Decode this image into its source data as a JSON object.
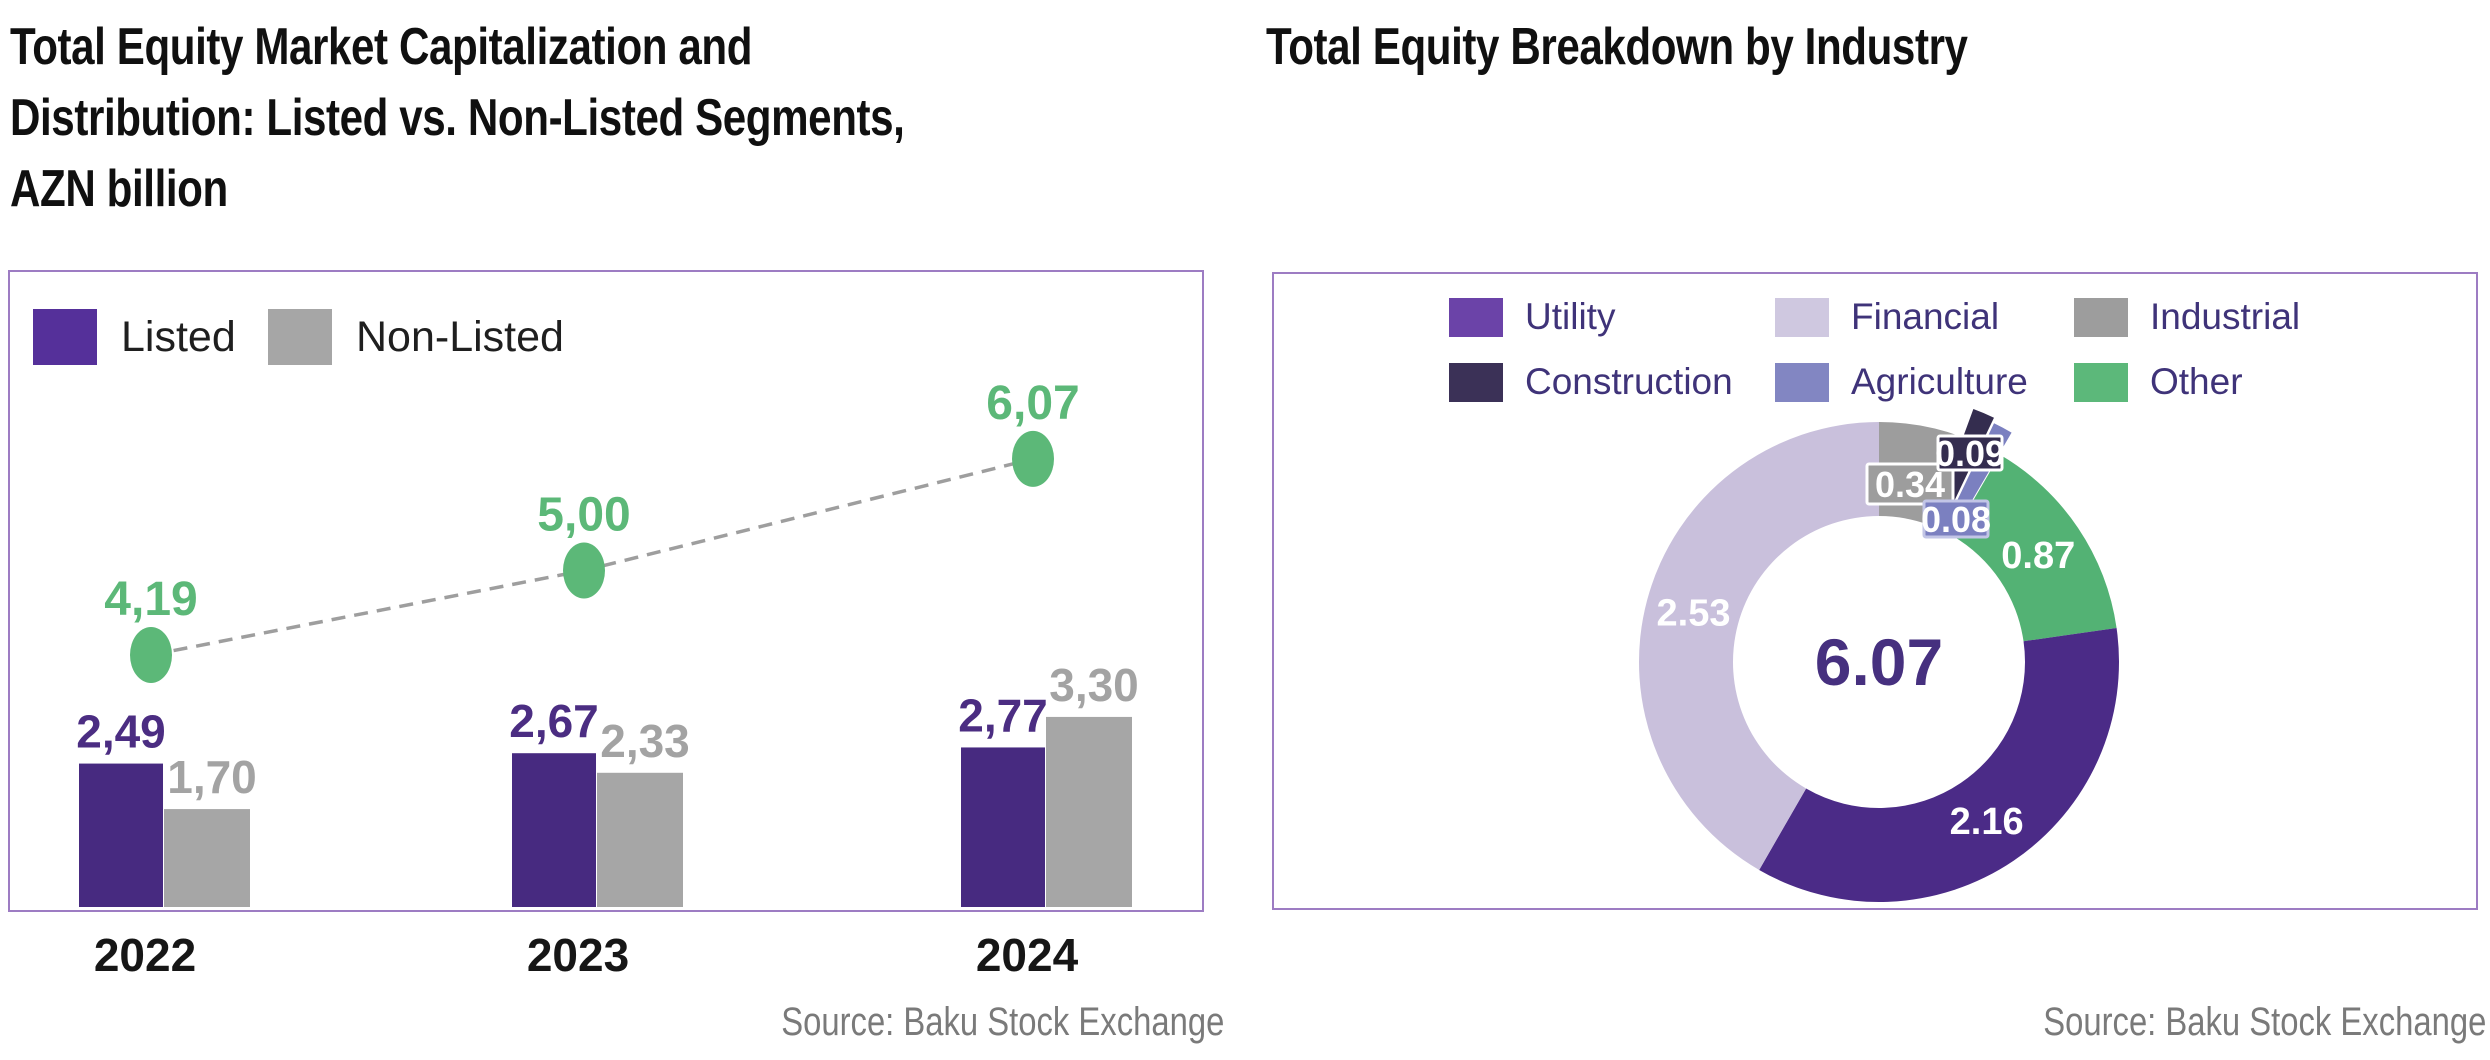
{
  "chart_data": [
    {
      "type": "bar",
      "title": "Total Equity Market Capitalization and Distribution: Listed vs. Non-Listed Segments, AZN billion",
      "title_lines": [
        "Total Equity Market Capitalization and",
        "Distribution: Listed vs. Non-Listed Segments,",
        "AZN billion"
      ],
      "source": "Source: Baku Stock Exchange",
      "categories": [
        "2022",
        "2023",
        "2024"
      ],
      "series": [
        {
          "name": "Listed",
          "type": "bar",
          "color": "#472a80",
          "values": [
            2.49,
            2.67,
            2.77
          ],
          "labels": [
            "2,49",
            "2,67",
            "2,77"
          ],
          "label_color": "#4b2d82"
        },
        {
          "name": "Non-Listed",
          "type": "bar",
          "color": "#a6a6a6",
          "values": [
            1.7,
            2.33,
            3.3
          ],
          "labels": [
            "1,70",
            "2,33",
            "3,30"
          ],
          "label_color": "#a3a3a3"
        },
        {
          "name": "Total",
          "type": "line",
          "color": "#5cb878",
          "values": [
            4.19,
            5.0,
            6.07
          ],
          "labels": [
            "4,19",
            "5,00",
            "6,07"
          ],
          "line_style": "dashed",
          "line_color": "#9e9e9e"
        }
      ],
      "legend": [
        {
          "label": "Listed",
          "color": "#55309a"
        },
        {
          "label": "Non-Listed",
          "color": "#a6a6a6"
        }
      ],
      "ylim": [
        0,
        7
      ],
      "grid": false,
      "legend_position": "top-left",
      "value_format": "comma-decimal"
    },
    {
      "type": "pie",
      "donut": true,
      "title": "Total Equity Breakdown by Industry",
      "source": "Source: Baku Stock Exchange",
      "center_label": "6.07",
      "center_label_color": "#46307f",
      "total": 6.07,
      "legend": [
        {
          "label": "Utility",
          "color": "#6b43a8"
        },
        {
          "label": "Financial",
          "color": "#cfc8e0"
        },
        {
          "label": "Industrial",
          "color": "#9d9d9d"
        },
        {
          "label": "Construction",
          "color": "#3b3157"
        },
        {
          "label": "Agriculture",
          "color": "#8286c2"
        },
        {
          "label": "Other",
          "color": "#5cb87a"
        }
      ],
      "segments": [
        {
          "name": "Industrial",
          "value": 0.34,
          "label": "0.34",
          "color": "#9d9d9d"
        },
        {
          "name": "Construction",
          "value": 0.09,
          "label": "0.09",
          "color": "#342d4f"
        },
        {
          "name": "Agriculture",
          "value": 0.08,
          "label": "0.08",
          "color": "#7b80c0"
        },
        {
          "name": "Other",
          "value": 0.87,
          "label": "0.87",
          "color": "#53b274"
        },
        {
          "name": "Utility",
          "value": 2.16,
          "label": "2.16",
          "color": "#4b2b87"
        },
        {
          "name": "Financial",
          "value": 2.53,
          "label": "2.53",
          "color": "#c9c0dc"
        }
      ],
      "start_angle_deg": 0,
      "clockwise": true,
      "legend_position": "top"
    }
  ]
}
